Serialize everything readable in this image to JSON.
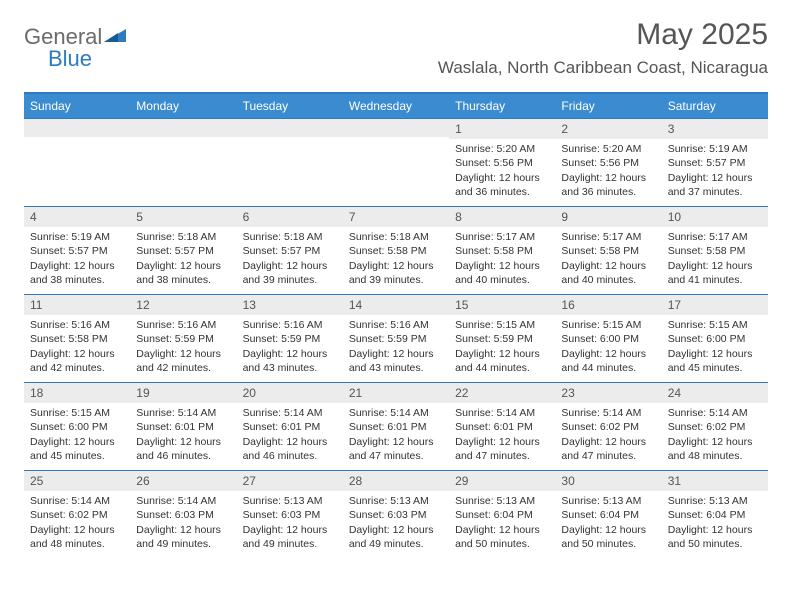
{
  "brand": {
    "text1": "General",
    "text2": "Blue"
  },
  "title": "May 2025",
  "location": "Waslala, North Caribbean Coast, Nicaragua",
  "colors": {
    "header_bg": "#3a8bd0",
    "header_border": "#2e7cc0",
    "daynum_bg": "#ececec",
    "text": "#333333",
    "title_text": "#555555",
    "logo_gray": "#6b6b6b",
    "logo_blue": "#2e7cc0"
  },
  "weekdays": [
    "Sunday",
    "Monday",
    "Tuesday",
    "Wednesday",
    "Thursday",
    "Friday",
    "Saturday"
  ],
  "weeks": [
    [
      {
        "day": "",
        "sunrise": "",
        "sunset": "",
        "daylight": ""
      },
      {
        "day": "",
        "sunrise": "",
        "sunset": "",
        "daylight": ""
      },
      {
        "day": "",
        "sunrise": "",
        "sunset": "",
        "daylight": ""
      },
      {
        "day": "",
        "sunrise": "",
        "sunset": "",
        "daylight": ""
      },
      {
        "day": "1",
        "sunrise": "Sunrise: 5:20 AM",
        "sunset": "Sunset: 5:56 PM",
        "daylight": "Daylight: 12 hours and 36 minutes."
      },
      {
        "day": "2",
        "sunrise": "Sunrise: 5:20 AM",
        "sunset": "Sunset: 5:56 PM",
        "daylight": "Daylight: 12 hours and 36 minutes."
      },
      {
        "day": "3",
        "sunrise": "Sunrise: 5:19 AM",
        "sunset": "Sunset: 5:57 PM",
        "daylight": "Daylight: 12 hours and 37 minutes."
      }
    ],
    [
      {
        "day": "4",
        "sunrise": "Sunrise: 5:19 AM",
        "sunset": "Sunset: 5:57 PM",
        "daylight": "Daylight: 12 hours and 38 minutes."
      },
      {
        "day": "5",
        "sunrise": "Sunrise: 5:18 AM",
        "sunset": "Sunset: 5:57 PM",
        "daylight": "Daylight: 12 hours and 38 minutes."
      },
      {
        "day": "6",
        "sunrise": "Sunrise: 5:18 AM",
        "sunset": "Sunset: 5:57 PM",
        "daylight": "Daylight: 12 hours and 39 minutes."
      },
      {
        "day": "7",
        "sunrise": "Sunrise: 5:18 AM",
        "sunset": "Sunset: 5:58 PM",
        "daylight": "Daylight: 12 hours and 39 minutes."
      },
      {
        "day": "8",
        "sunrise": "Sunrise: 5:17 AM",
        "sunset": "Sunset: 5:58 PM",
        "daylight": "Daylight: 12 hours and 40 minutes."
      },
      {
        "day": "9",
        "sunrise": "Sunrise: 5:17 AM",
        "sunset": "Sunset: 5:58 PM",
        "daylight": "Daylight: 12 hours and 40 minutes."
      },
      {
        "day": "10",
        "sunrise": "Sunrise: 5:17 AM",
        "sunset": "Sunset: 5:58 PM",
        "daylight": "Daylight: 12 hours and 41 minutes."
      }
    ],
    [
      {
        "day": "11",
        "sunrise": "Sunrise: 5:16 AM",
        "sunset": "Sunset: 5:58 PM",
        "daylight": "Daylight: 12 hours and 42 minutes."
      },
      {
        "day": "12",
        "sunrise": "Sunrise: 5:16 AM",
        "sunset": "Sunset: 5:59 PM",
        "daylight": "Daylight: 12 hours and 42 minutes."
      },
      {
        "day": "13",
        "sunrise": "Sunrise: 5:16 AM",
        "sunset": "Sunset: 5:59 PM",
        "daylight": "Daylight: 12 hours and 43 minutes."
      },
      {
        "day": "14",
        "sunrise": "Sunrise: 5:16 AM",
        "sunset": "Sunset: 5:59 PM",
        "daylight": "Daylight: 12 hours and 43 minutes."
      },
      {
        "day": "15",
        "sunrise": "Sunrise: 5:15 AM",
        "sunset": "Sunset: 5:59 PM",
        "daylight": "Daylight: 12 hours and 44 minutes."
      },
      {
        "day": "16",
        "sunrise": "Sunrise: 5:15 AM",
        "sunset": "Sunset: 6:00 PM",
        "daylight": "Daylight: 12 hours and 44 minutes."
      },
      {
        "day": "17",
        "sunrise": "Sunrise: 5:15 AM",
        "sunset": "Sunset: 6:00 PM",
        "daylight": "Daylight: 12 hours and 45 minutes."
      }
    ],
    [
      {
        "day": "18",
        "sunrise": "Sunrise: 5:15 AM",
        "sunset": "Sunset: 6:00 PM",
        "daylight": "Daylight: 12 hours and 45 minutes."
      },
      {
        "day": "19",
        "sunrise": "Sunrise: 5:14 AM",
        "sunset": "Sunset: 6:01 PM",
        "daylight": "Daylight: 12 hours and 46 minutes."
      },
      {
        "day": "20",
        "sunrise": "Sunrise: 5:14 AM",
        "sunset": "Sunset: 6:01 PM",
        "daylight": "Daylight: 12 hours and 46 minutes."
      },
      {
        "day": "21",
        "sunrise": "Sunrise: 5:14 AM",
        "sunset": "Sunset: 6:01 PM",
        "daylight": "Daylight: 12 hours and 47 minutes."
      },
      {
        "day": "22",
        "sunrise": "Sunrise: 5:14 AM",
        "sunset": "Sunset: 6:01 PM",
        "daylight": "Daylight: 12 hours and 47 minutes."
      },
      {
        "day": "23",
        "sunrise": "Sunrise: 5:14 AM",
        "sunset": "Sunset: 6:02 PM",
        "daylight": "Daylight: 12 hours and 47 minutes."
      },
      {
        "day": "24",
        "sunrise": "Sunrise: 5:14 AM",
        "sunset": "Sunset: 6:02 PM",
        "daylight": "Daylight: 12 hours and 48 minutes."
      }
    ],
    [
      {
        "day": "25",
        "sunrise": "Sunrise: 5:14 AM",
        "sunset": "Sunset: 6:02 PM",
        "daylight": "Daylight: 12 hours and 48 minutes."
      },
      {
        "day": "26",
        "sunrise": "Sunrise: 5:14 AM",
        "sunset": "Sunset: 6:03 PM",
        "daylight": "Daylight: 12 hours and 49 minutes."
      },
      {
        "day": "27",
        "sunrise": "Sunrise: 5:13 AM",
        "sunset": "Sunset: 6:03 PM",
        "daylight": "Daylight: 12 hours and 49 minutes."
      },
      {
        "day": "28",
        "sunrise": "Sunrise: 5:13 AM",
        "sunset": "Sunset: 6:03 PM",
        "daylight": "Daylight: 12 hours and 49 minutes."
      },
      {
        "day": "29",
        "sunrise": "Sunrise: 5:13 AM",
        "sunset": "Sunset: 6:04 PM",
        "daylight": "Daylight: 12 hours and 50 minutes."
      },
      {
        "day": "30",
        "sunrise": "Sunrise: 5:13 AM",
        "sunset": "Sunset: 6:04 PM",
        "daylight": "Daylight: 12 hours and 50 minutes."
      },
      {
        "day": "31",
        "sunrise": "Sunrise: 5:13 AM",
        "sunset": "Sunset: 6:04 PM",
        "daylight": "Daylight: 12 hours and 50 minutes."
      }
    ]
  ]
}
